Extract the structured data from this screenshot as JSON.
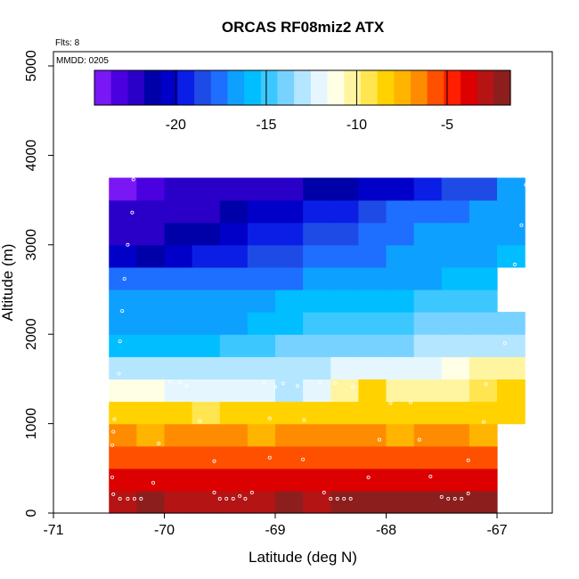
{
  "chart_data": {
    "type": "heatmap",
    "title": "ORCAS RF08miz2 ATX",
    "xlabel": "Latitude (deg N)",
    "ylabel": "Altitude (m)",
    "flights_label": "Flts: 8",
    "date_label": "MMDD: 0205",
    "xlim": [
      -71,
      -66.5
    ],
    "ylim": [
      0,
      5200
    ],
    "x_ticks": [
      -71,
      -70,
      -69,
      -68,
      -67
    ],
    "x_tick_labels": [
      "-71",
      "-70",
      "-69",
      "-68",
      "-67"
    ],
    "y_ticks": [
      0,
      1000,
      2000,
      3000,
      4000,
      5000
    ],
    "y_tick_labels": [
      "0",
      "1000",
      "2000",
      "3000",
      "4000",
      "5000"
    ],
    "colorbar": {
      "min": -24.5,
      "max": -1.5,
      "ticks": [
        -20,
        -15,
        -10,
        -5
      ],
      "tick_labels": [
        "-20",
        "-15",
        "-10",
        "-5"
      ],
      "colors": [
        "#7a17f5",
        "#4b00e0",
        "#2a00c8",
        "#0000a8",
        "#0000c8",
        "#0a1ee6",
        "#1e4be6",
        "#1e6eff",
        "#0ea0ff",
        "#00beff",
        "#3cc8ff",
        "#78d2ff",
        "#b4e6ff",
        "#e6f6ff",
        "#ffffe6",
        "#fff5a0",
        "#ffe650",
        "#ffd200",
        "#ffb400",
        "#ff8c00",
        "#ff5000",
        "#ff1e00",
        "#dc0000",
        "#b41414",
        "#8c1e1e"
      ]
    },
    "lat_edges": [
      -70.5,
      -70.25,
      -70.0,
      -69.75,
      -69.5,
      -69.25,
      -69.0,
      -68.75,
      -68.5,
      -68.25,
      -68.0,
      -67.75,
      -67.5,
      -67.25,
      -67.0,
      -66.75
    ],
    "alt_edges": [
      0,
      250,
      500,
      750,
      1000,
      1250,
      1500,
      1750,
      2000,
      2250,
      2500,
      2750,
      3000,
      3250,
      3500,
      3750
    ],
    "cells": [
      [
        -2.5,
        -2.4,
        -2.5,
        -2.5,
        -2.6,
        -2.5,
        -2.4,
        -2.5,
        -2.4,
        -2.3,
        -2.2,
        -2.3,
        -2.2,
        -2.3,
        null
      ],
      [
        -3.5,
        -3.5,
        -3.5,
        -3.4,
        -3.5,
        -3.5,
        -3.4,
        -3.5,
        -3.5,
        -3.4,
        -3.5,
        -3.4,
        -3.5,
        -3.6,
        null
      ],
      [
        -5.5,
        -5.5,
        -6.0,
        -5.6,
        -5.7,
        -5.5,
        -5.4,
        -5.6,
        -5.5,
        -5.3,
        -5.3,
        -5.4,
        -5.5,
        -5.6,
        null
      ],
      [
        -7.0,
        -7.2,
        -7.0,
        -7.0,
        -7.0,
        -7.1,
        -7.0,
        -7.0,
        -7.0,
        -7.0,
        -7.2,
        -7.0,
        -7.0,
        -7.2,
        null
      ],
      [
        -8.2,
        -8.6,
        -8.5,
        -9.5,
        -8.4,
        -8.2,
        -8.1,
        -8.4,
        -8.4,
        -8.2,
        -8.1,
        -8.3,
        -8.5,
        -8.3,
        -8.2
      ],
      [
        -11.0,
        -11.4,
        -11.7,
        -12.0,
        -12.2,
        -12.3,
        -12.6,
        -12.4,
        -10.2,
        -8.8,
        -10.0,
        -10.2,
        -10.5,
        -9.0,
        -8.5
      ],
      [
        -12.8,
        -12.7,
        -12.6,
        -12.7,
        -12.6,
        -12.6,
        -12.7,
        -12.6,
        -12.5,
        -12.4,
        -12.3,
        -12.0,
        -11.5,
        -10.3,
        -10.0
      ],
      [
        -16.1,
        -16.0,
        -16.2,
        -15.8,
        -15.1,
        -14.6,
        -14.2,
        -14.0,
        -13.8,
        -13.6,
        -13.5,
        -13.2,
        -13.0,
        -12.8,
        -12.6
      ],
      [
        -16.4,
        -16.5,
        -16.6,
        -16.5,
        -16.3,
        -16.0,
        -15.6,
        -15.2,
        -14.9,
        -14.7,
        -14.5,
        -14.3,
        -14.1,
        -13.8,
        -13.5
      ],
      [
        -16.6,
        -16.8,
        -16.8,
        -16.9,
        -16.6,
        -16.4,
        -16.2,
        -16.2,
        -15.9,
        -15.7,
        -15.5,
        -15.3,
        -15.1,
        -14.8,
        null
      ],
      [
        -17.5,
        -17.4,
        -17.5,
        -17.4,
        -17.4,
        -17.3,
        -17.2,
        -17.0,
        -16.9,
        -16.7,
        -16.5,
        -16.4,
        -16.2,
        -15.4,
        null
      ],
      [
        -20.5,
        -21.5,
        -20.4,
        -19.6,
        -19.2,
        -18.6,
        -18.5,
        -17.9,
        -17.5,
        -17.2,
        -17.0,
        -16.8,
        -16.7,
        -16.3,
        -16.0
      ],
      [
        -22.0,
        -22.0,
        -21.4,
        -21.2,
        -20.0,
        -19.4,
        -19.2,
        -18.9,
        -18.5,
        -18.0,
        -17.5,
        -17.0,
        -16.8,
        -16.7,
        -16.5
      ],
      [
        -22.5,
        -22.0,
        -22.4,
        -22.0,
        -21.3,
        -20.7,
        -20.3,
        -19.8,
        -19.4,
        -18.7,
        -18.0,
        -17.5,
        -17.2,
        -16.7,
        -16.4
      ],
      [
        -24.0,
        -23.0,
        -22.6,
        -22.2,
        -22.0,
        -21.9,
        -21.8,
        -21.5,
        -21.2,
        -20.5,
        -20.0,
        -19.3,
        -18.8,
        -18.2,
        -17.0
      ]
    ],
    "points": [
      [
        -70.46,
        210
      ],
      [
        -70.4,
        160
      ],
      [
        -70.33,
        160
      ],
      [
        -70.27,
        160
      ],
      [
        -70.21,
        160
      ],
      [
        -70.47,
        400
      ],
      [
        -70.47,
        760
      ],
      [
        -70.46,
        910
      ],
      [
        -70.1,
        340
      ],
      [
        -70.05,
        780
      ],
      [
        -69.55,
        580
      ],
      [
        -69.55,
        230
      ],
      [
        -69.5,
        160
      ],
      [
        -69.44,
        160
      ],
      [
        -69.38,
        160
      ],
      [
        -69.32,
        190
      ],
      [
        -69.27,
        160
      ],
      [
        -69.21,
        230
      ],
      [
        -69.05,
        620
      ],
      [
        -68.75,
        600
      ],
      [
        -68.56,
        230
      ],
      [
        -68.5,
        160
      ],
      [
        -68.44,
        160
      ],
      [
        -68.38,
        160
      ],
      [
        -68.32,
        160
      ],
      [
        -68.16,
        400
      ],
      [
        -68.06,
        820
      ],
      [
        -67.7,
        820
      ],
      [
        -67.6,
        410
      ],
      [
        -67.5,
        180
      ],
      [
        -67.44,
        160
      ],
      [
        -67.38,
        160
      ],
      [
        -67.32,
        160
      ],
      [
        -67.26,
        220
      ],
      [
        -67.26,
        590
      ],
      [
        -67.78,
        1240
      ],
      [
        -67.96,
        1230
      ],
      [
        -68.3,
        1410
      ],
      [
        -68.46,
        1450
      ],
      [
        -68.6,
        1460
      ],
      [
        -68.8,
        1420
      ],
      [
        -68.93,
        1450
      ],
      [
        -69.0,
        1410
      ],
      [
        -69.1,
        1460
      ],
      [
        -69.68,
        1030
      ],
      [
        -69.05,
        1060
      ],
      [
        -68.74,
        1040
      ],
      [
        -70.45,
        1050
      ],
      [
        -70.41,
        1560
      ],
      [
        -70.4,
        1920
      ],
      [
        -70.38,
        2260
      ],
      [
        -70.36,
        2620
      ],
      [
        -70.33,
        3000
      ],
      [
        -70.29,
        3360
      ],
      [
        -70.28,
        3730
      ],
      [
        -69.95,
        1470
      ],
      [
        -69.86,
        1460
      ],
      [
        -69.8,
        1420
      ],
      [
        -67.12,
        1020
      ],
      [
        -67.1,
        1440
      ],
      [
        -66.93,
        1900
      ],
      [
        -66.88,
        2340
      ],
      [
        -66.84,
        2780
      ],
      [
        -66.78,
        3220
      ],
      [
        -66.74,
        3670
      ]
    ]
  }
}
